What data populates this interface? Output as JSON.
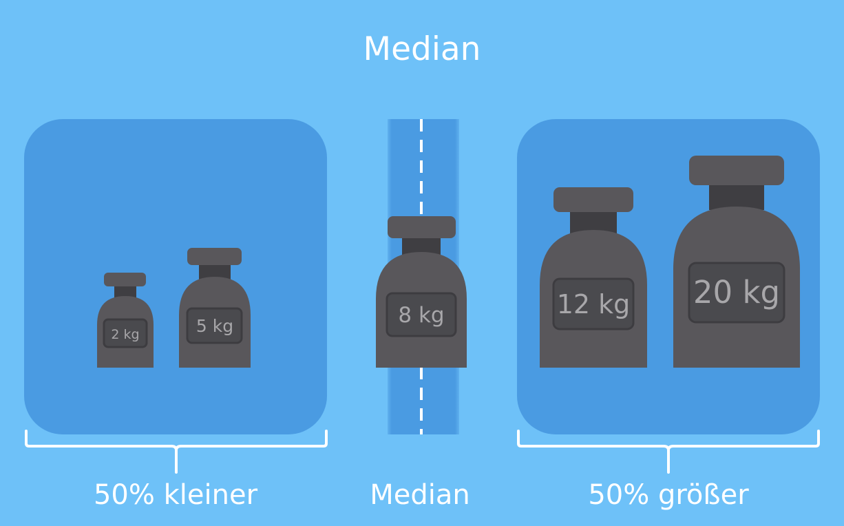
{
  "title": "Median",
  "weights": [
    {
      "label": "2 kg"
    },
    {
      "label": "5 kg"
    },
    {
      "label": "8 kg"
    },
    {
      "label": "12 kg"
    },
    {
      "label": "20 kg"
    }
  ],
  "groups": {
    "left": "50% kleiner",
    "center": "Median",
    "right": "50% größer"
  },
  "colors": {
    "background": "#6ec1f8",
    "panel": "#4a9be2",
    "weight_body": "#59575b",
    "weight_neck": "#3f3e42",
    "label_box": "#4a4a4e",
    "label_text": "#a8a7aa",
    "text": "#ffffff"
  }
}
